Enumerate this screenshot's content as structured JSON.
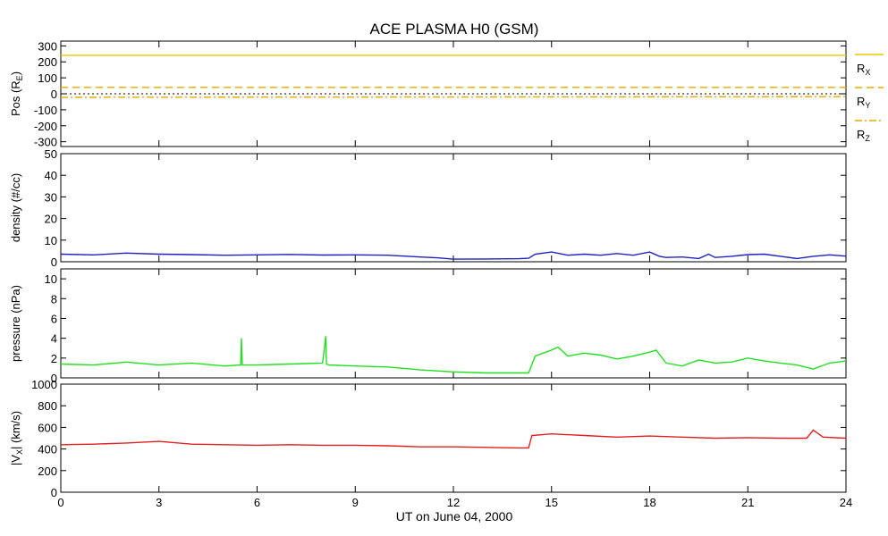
{
  "chart_data": {
    "type": "line",
    "title": "ACE PLASMA H0 (GSM)",
    "xlabel": "UT on June 04, 2000",
    "xlim": [
      0,
      24
    ],
    "xticks": [
      "0",
      "3",
      "6",
      "9",
      "12",
      "15",
      "18",
      "21",
      "24"
    ],
    "panels": [
      {
        "id": "pos",
        "ylabel_main": "Pos (R",
        "ylabel_sub": "E",
        "ylabel_end": ")",
        "ylim": [
          -330,
          330
        ],
        "yticks": [
          300,
          200,
          100,
          0,
          -100,
          -200,
          -300
        ],
        "series": [
          {
            "name_main": "R",
            "name_sub": "X",
            "color": "#e8c800",
            "dash": "",
            "x": [
              0,
              24
            ],
            "y": [
              241,
              241
            ]
          },
          {
            "name_main": "R",
            "name_sub": "Y",
            "color": "#e8a800",
            "dash": "8,5",
            "x": [
              0,
              24
            ],
            "y": [
              40,
              40
            ]
          },
          {
            "name_main": "R",
            "name_sub": "Z",
            "color": "#e8a800",
            "dash": "8,3,2,3",
            "x": [
              0,
              24
            ],
            "y": [
              -22,
              -18
            ]
          }
        ],
        "zero_line": true
      },
      {
        "id": "density",
        "ylabel_main": "density (#/cc)",
        "ylim": [
          0,
          50
        ],
        "yticks": [
          50,
          40,
          30,
          20,
          10,
          0
        ],
        "series": [
          {
            "color": "#2020c0",
            "x": [
              0,
              1,
              2,
              3,
              4,
              5,
              6,
              7,
              8,
              9,
              10,
              11,
              11.5,
              12,
              13,
              14,
              14.3,
              14.5,
              15,
              15.5,
              16,
              16.5,
              17,
              17.5,
              18,
              18.3,
              18.5,
              19,
              19.5,
              19.8,
              20,
              20.5,
              21,
              21.5,
              22,
              22.5,
              23,
              23.5,
              24
            ],
            "y": [
              3.5,
              3.2,
              4,
              3.5,
              3.3,
              3,
              3.2,
              3.4,
              3.1,
              3.2,
              3,
              2.2,
              1.8,
              1.2,
              1.3,
              1.4,
              1.6,
              3.5,
              4.5,
              3,
              3.5,
              3,
              3.8,
              3,
              4.5,
              2.5,
              2,
              2.2,
              1.5,
              3.5,
              2,
              2.5,
              3.3,
              3.5,
              2.5,
              1.5,
              2.5,
              3.2,
              2.6
            ]
          }
        ]
      },
      {
        "id": "pressure",
        "ylabel_main": "pressure (nPa)",
        "ylim": [
          0,
          11
        ],
        "yticks": [
          10,
          8,
          6,
          4,
          2,
          0
        ],
        "series": [
          {
            "color": "#20e020",
            "x": [
              0,
              1,
              2,
              3,
              4,
              5,
              5.5,
              5.52,
              5.55,
              6,
              7,
              8,
              8.1,
              8.12,
              8.2,
              9,
              10,
              11,
              12,
              13,
              14,
              14.3,
              14.5,
              15,
              15.2,
              15.5,
              16,
              16.5,
              17,
              17.5,
              18,
              18.2,
              18.5,
              19,
              19.5,
              20,
              20.5,
              21,
              21.5,
              22,
              22.5,
              23,
              23.5,
              24
            ],
            "y": [
              1.4,
              1.3,
              1.6,
              1.3,
              1.5,
              1.2,
              1.3,
              4.0,
              1.3,
              1.3,
              1.4,
              1.5,
              4.2,
              1.4,
              1.3,
              1.2,
              1.1,
              0.8,
              0.6,
              0.5,
              0.5,
              0.5,
              2.2,
              2.8,
              3.1,
              2.2,
              2.5,
              2.3,
              1.9,
              2.2,
              2.6,
              2.8,
              1.5,
              1.2,
              1.8,
              1.5,
              1.6,
              2.0,
              1.7,
              1.5,
              1.3,
              0.9,
              1.5,
              1.7
            ]
          }
        ]
      },
      {
        "id": "vx",
        "ylabel_main": "|V",
        "ylabel_sub": "X",
        "ylabel_end": "| (km/s)",
        "ylim": [
          0,
          1000
        ],
        "yticks": [
          1000,
          800,
          600,
          400,
          200,
          0
        ],
        "series": [
          {
            "color": "#e02020",
            "x": [
              0,
              1,
              2,
              3,
              4,
              5,
              6,
              7,
              8,
              9,
              10,
              11,
              12,
              13,
              14,
              14.3,
              14.4,
              15,
              16,
              17,
              18,
              19,
              20,
              21,
              22,
              22.8,
              23,
              23.3,
              24
            ],
            "y": [
              440,
              445,
              455,
              470,
              445,
              440,
              435,
              440,
              435,
              435,
              430,
              420,
              420,
              415,
              410,
              410,
              525,
              540,
              525,
              510,
              520,
              510,
              500,
              505,
              500,
              500,
              575,
              510,
              500
            ]
          }
        ]
      }
    ]
  }
}
